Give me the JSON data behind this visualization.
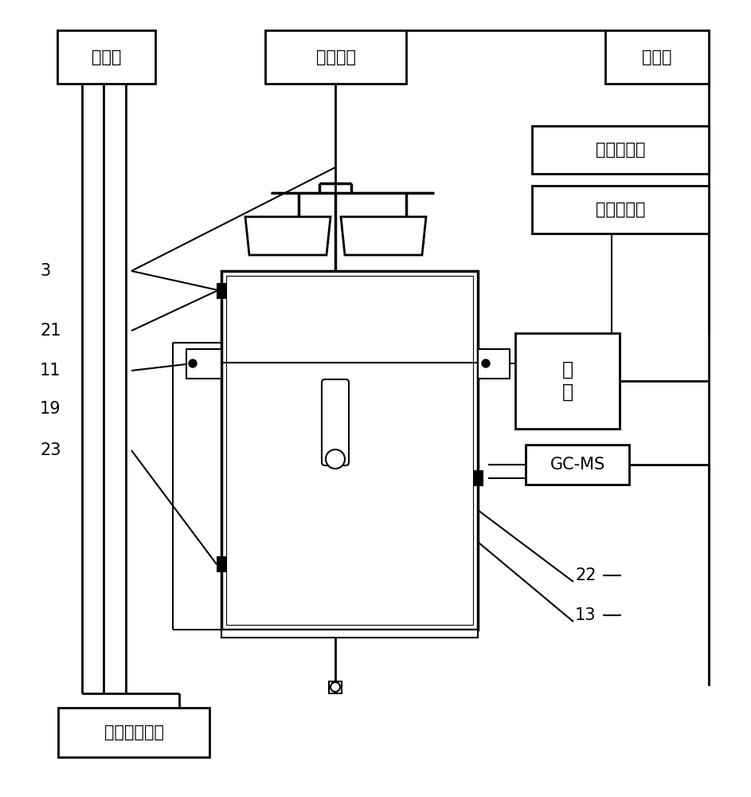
{
  "bg_color": "#ffffff",
  "line_color": "#000000",
  "labels": {
    "kongwenji": "控温仪",
    "chengzhong": "称重天平",
    "jisuanji": "计算机",
    "yundong": "运动控制卡",
    "dianjiqudong": "电机驱动器",
    "dianji": "电\n机",
    "gcms": "GC-MS",
    "jiare": "加热浴控制器"
  },
  "numbers": [
    "3",
    "21",
    "11",
    "19",
    "23",
    "22",
    "13"
  ],
  "fig_width": 9.43,
  "fig_height": 10.0,
  "font_size": 15
}
